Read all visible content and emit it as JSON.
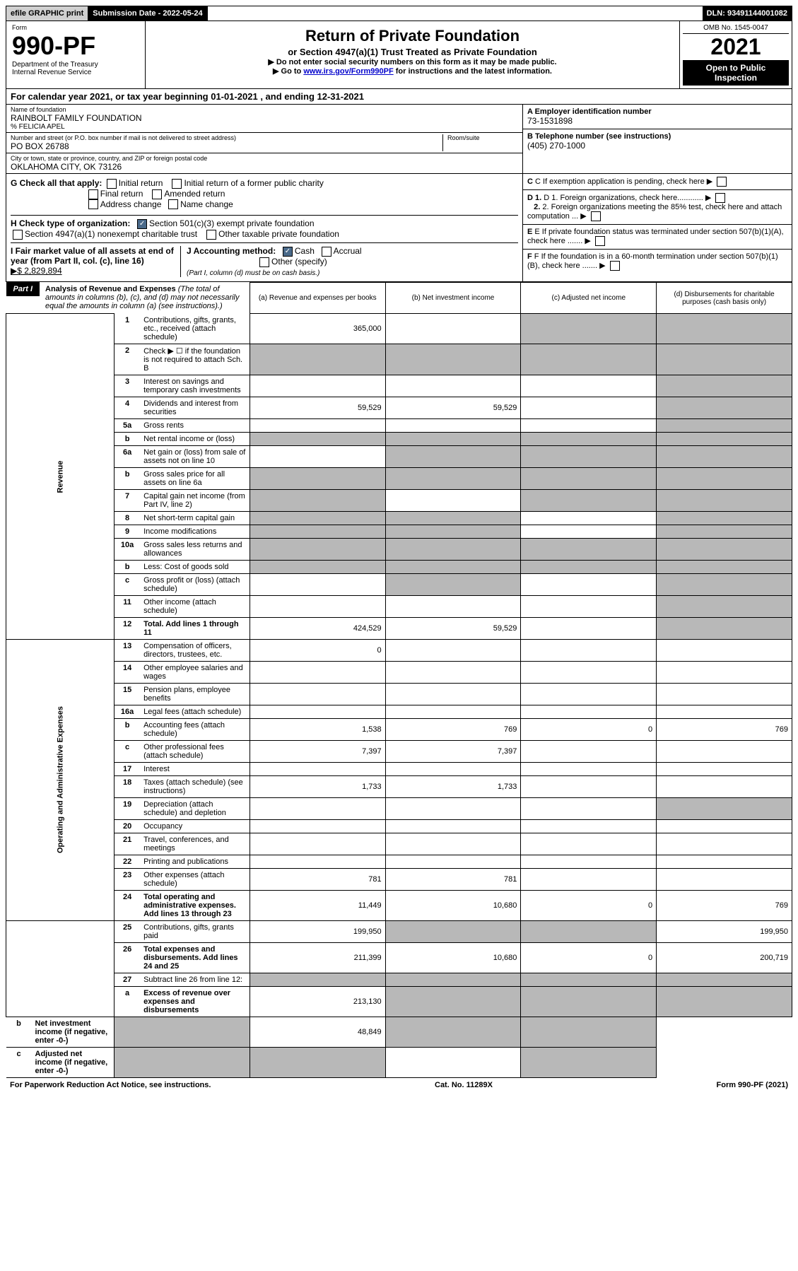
{
  "topbar": {
    "efile": "efile GRAPHIC print",
    "submission": "Submission Date - 2022-05-24",
    "dln": "DLN: 93491144001082"
  },
  "header": {
    "form_label": "Form",
    "form_number": "990-PF",
    "dept1": "Department of the Treasury",
    "dept2": "Internal Revenue Service",
    "title": "Return of Private Foundation",
    "subtitle": "or Section 4947(a)(1) Trust Treated as Private Foundation",
    "note1": "▶ Do not enter social security numbers on this form as it may be made public.",
    "note2_prefix": "▶ Go to ",
    "note2_link": "www.irs.gov/Form990PF",
    "note2_suffix": " for instructions and the latest information.",
    "omb": "OMB No. 1545-0047",
    "year": "2021",
    "open": "Open to Public Inspection"
  },
  "calendar": "For calendar year 2021, or tax year beginning 01-01-2021           , and ending 12-31-2021",
  "identity": {
    "name_label": "Name of foundation",
    "name": "RAINBOLT FAMILY FOUNDATION",
    "care_of": "% FELICIA APEL",
    "addr_label": "Number and street (or P.O. box number if mail is not delivered to street address)",
    "addr": "PO BOX 26788",
    "room_label": "Room/suite",
    "city_label": "City or town, state or province, country, and ZIP or foreign postal code",
    "city": "OKLAHOMA CITY, OK  73126",
    "ein_label": "A Employer identification number",
    "ein": "73-1531898",
    "phone_label": "B Telephone number (see instructions)",
    "phone": "(405) 270-1000",
    "c": "C If exemption application is pending, check here",
    "d1": "D 1. Foreign organizations, check here............",
    "d2": "2. Foreign organizations meeting the 85% test, check here and attach computation ...",
    "e": "E If private foundation status was terminated under section 507(b)(1)(A), check here .......",
    "f": "F If the foundation is in a 60-month termination under section 507(b)(1)(B), check here .......",
    "g_label": "G Check all that apply:",
    "g_initial": "Initial return",
    "g_initial_former": "Initial return of a former public charity",
    "g_final": "Final return",
    "g_amended": "Amended return",
    "g_address": "Address change",
    "g_name": "Name change",
    "h_label": "H Check type of organization:",
    "h_501c3": "Section 501(c)(3) exempt private foundation",
    "h_4947": "Section 4947(a)(1) nonexempt charitable trust",
    "h_other": "Other taxable private foundation",
    "i_label": "I Fair market value of all assets at end of year (from Part II, col. (c), line 16)",
    "i_amount": "▶$  2,829,894",
    "j_label": "J Accounting method:",
    "j_cash": "Cash",
    "j_accrual": "Accrual",
    "j_other": "Other (specify)",
    "j_note": "(Part I, column (d) must be on cash basis.)"
  },
  "part1": {
    "label": "Part I",
    "title": "Analysis of Revenue and Expenses",
    "subtitle": "(The total of amounts in columns (b), (c), and (d) may not necessarily equal the amounts in column (a) (see instructions).)",
    "col_a": "(a) Revenue and expenses per books",
    "col_b": "(b) Net investment income",
    "col_c": "(c) Adjusted net income",
    "col_d": "(d) Disbursements for charitable purposes (cash basis only)"
  },
  "sections": {
    "revenue": "Revenue",
    "op_admin": "Operating and Administrative Expenses"
  },
  "rows": [
    {
      "no": "1",
      "desc": "Contributions, gifts, grants, etc., received (attach schedule)",
      "a": "365,000",
      "b": "",
      "c": "grey",
      "d": "grey"
    },
    {
      "no": "2",
      "desc": "Check ▶ ☐ if the foundation is not required to attach Sch. B",
      "a": "grey",
      "b": "grey",
      "c": "grey",
      "d": "grey"
    },
    {
      "no": "3",
      "desc": "Interest on savings and temporary cash investments",
      "a": "",
      "b": "",
      "c": "",
      "d": "grey"
    },
    {
      "no": "4",
      "desc": "Dividends and interest from securities",
      "a": "59,529",
      "b": "59,529",
      "c": "",
      "d": "grey"
    },
    {
      "no": "5a",
      "desc": "Gross rents",
      "a": "",
      "b": "",
      "c": "",
      "d": "grey"
    },
    {
      "no": "b",
      "desc": "Net rental income or (loss)",
      "a": "grey",
      "b": "grey",
      "c": "grey",
      "d": "grey"
    },
    {
      "no": "6a",
      "desc": "Net gain or (loss) from sale of assets not on line 10",
      "a": "",
      "b": "grey",
      "c": "grey",
      "d": "grey"
    },
    {
      "no": "b",
      "desc": "Gross sales price for all assets on line 6a",
      "a": "grey",
      "b": "grey",
      "c": "grey",
      "d": "grey"
    },
    {
      "no": "7",
      "desc": "Capital gain net income (from Part IV, line 2)",
      "a": "grey",
      "b": "",
      "c": "grey",
      "d": "grey"
    },
    {
      "no": "8",
      "desc": "Net short-term capital gain",
      "a": "grey",
      "b": "grey",
      "c": "",
      "d": "grey"
    },
    {
      "no": "9",
      "desc": "Income modifications",
      "a": "grey",
      "b": "grey",
      "c": "",
      "d": "grey"
    },
    {
      "no": "10a",
      "desc": "Gross sales less returns and allowances",
      "a": "grey",
      "b": "grey",
      "c": "grey",
      "d": "grey"
    },
    {
      "no": "b",
      "desc": "Less: Cost of goods sold",
      "a": "grey",
      "b": "grey",
      "c": "grey",
      "d": "grey"
    },
    {
      "no": "c",
      "desc": "Gross profit or (loss) (attach schedule)",
      "a": "",
      "b": "grey",
      "c": "",
      "d": "grey"
    },
    {
      "no": "11",
      "desc": "Other income (attach schedule)",
      "a": "",
      "b": "",
      "c": "",
      "d": "grey"
    },
    {
      "no": "12",
      "desc": "Total. Add lines 1 through 11",
      "bold": true,
      "a": "424,529",
      "b": "59,529",
      "c": "",
      "d": "grey"
    },
    {
      "no": "13",
      "desc": "Compensation of officers, directors, trustees, etc.",
      "a": "0",
      "b": "",
      "c": "",
      "d": ""
    },
    {
      "no": "14",
      "desc": "Other employee salaries and wages",
      "a": "",
      "b": "",
      "c": "",
      "d": ""
    },
    {
      "no": "15",
      "desc": "Pension plans, employee benefits",
      "a": "",
      "b": "",
      "c": "",
      "d": ""
    },
    {
      "no": "16a",
      "desc": "Legal fees (attach schedule)",
      "a": "",
      "b": "",
      "c": "",
      "d": ""
    },
    {
      "no": "b",
      "desc": "Accounting fees (attach schedule)",
      "a": "1,538",
      "b": "769",
      "c": "0",
      "d": "769"
    },
    {
      "no": "c",
      "desc": "Other professional fees (attach schedule)",
      "a": "7,397",
      "b": "7,397",
      "c": "",
      "d": ""
    },
    {
      "no": "17",
      "desc": "Interest",
      "a": "",
      "b": "",
      "c": "",
      "d": ""
    },
    {
      "no": "18",
      "desc": "Taxes (attach schedule) (see instructions)",
      "a": "1,733",
      "b": "1,733",
      "c": "",
      "d": ""
    },
    {
      "no": "19",
      "desc": "Depreciation (attach schedule) and depletion",
      "a": "",
      "b": "",
      "c": "",
      "d": "grey"
    },
    {
      "no": "20",
      "desc": "Occupancy",
      "a": "",
      "b": "",
      "c": "",
      "d": ""
    },
    {
      "no": "21",
      "desc": "Travel, conferences, and meetings",
      "a": "",
      "b": "",
      "c": "",
      "d": ""
    },
    {
      "no": "22",
      "desc": "Printing and publications",
      "a": "",
      "b": "",
      "c": "",
      "d": ""
    },
    {
      "no": "23",
      "desc": "Other expenses (attach schedule)",
      "a": "781",
      "b": "781",
      "c": "",
      "d": ""
    },
    {
      "no": "24",
      "desc": "Total operating and administrative expenses. Add lines 13 through 23",
      "bold": true,
      "a": "11,449",
      "b": "10,680",
      "c": "0",
      "d": "769"
    },
    {
      "no": "25",
      "desc": "Contributions, gifts, grants paid",
      "a": "199,950",
      "b": "grey",
      "c": "grey",
      "d": "199,950"
    },
    {
      "no": "26",
      "desc": "Total expenses and disbursements. Add lines 24 and 25",
      "bold": true,
      "a": "211,399",
      "b": "10,680",
      "c": "0",
      "d": "200,719"
    },
    {
      "no": "27",
      "desc": "Subtract line 26 from line 12:",
      "a": "grey",
      "b": "grey",
      "c": "grey",
      "d": "grey"
    },
    {
      "no": "a",
      "desc": "Excess of revenue over expenses and disbursements",
      "bold": true,
      "a": "213,130",
      "b": "grey",
      "c": "grey",
      "d": "grey"
    },
    {
      "no": "b",
      "desc": "Net investment income (if negative, enter -0-)",
      "bold": true,
      "a": "grey",
      "b": "48,849",
      "c": "grey",
      "d": "grey"
    },
    {
      "no": "c",
      "desc": "Adjusted net income (if negative, enter -0-)",
      "bold": true,
      "a": "grey",
      "b": "grey",
      "c": "",
      "d": "grey"
    }
  ],
  "footer": {
    "left": "For Paperwork Reduction Act Notice, see instructions.",
    "center": "Cat. No. 11289X",
    "right": "Form 990-PF (2021)"
  }
}
